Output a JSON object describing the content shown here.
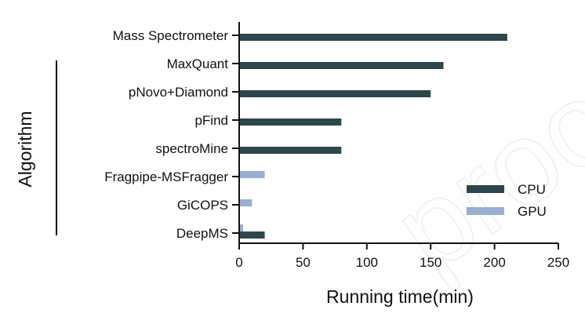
{
  "chart_data": {
    "type": "bar",
    "orientation": "horizontal",
    "categories": [
      "Mass Spectrometer",
      "MaxQuant",
      "pNovo+Diamond",
      "pFind",
      "spectroMine",
      "Fragpipe-MSFragger",
      "GiCOPS",
      "DeepMS"
    ],
    "series": [
      {
        "name": "CPU",
        "color": "#2d464c",
        "values": [
          210,
          160,
          150,
          80,
          80,
          null,
          null,
          20
        ]
      },
      {
        "name": "GPU",
        "color": "#9aaed1",
        "values": [
          null,
          null,
          null,
          null,
          null,
          20,
          10,
          3
        ]
      }
    ],
    "xlabel": "Running time(min)",
    "ylabel": "Algorithm",
    "xlim": [
      0,
      250
    ],
    "xticks": [
      "0",
      "50",
      "100",
      "150",
      "200",
      "250"
    ],
    "grid": false,
    "legend_position": "lower-right"
  },
  "watermark_text": "proof"
}
